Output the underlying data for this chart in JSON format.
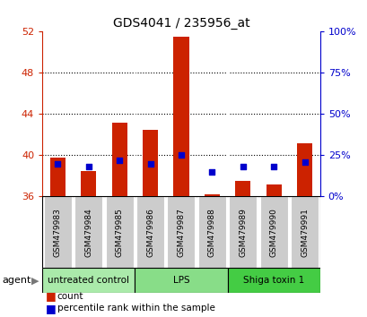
{
  "title": "GDS4041 / 235956_at",
  "samples": [
    "GSM479983",
    "GSM479984",
    "GSM479985",
    "GSM479986",
    "GSM479987",
    "GSM479988",
    "GSM479989",
    "GSM479990",
    "GSM479991"
  ],
  "counts": [
    39.8,
    38.5,
    43.2,
    42.5,
    51.5,
    36.2,
    37.5,
    37.2,
    41.2
  ],
  "percentiles": [
    20,
    18,
    22,
    20,
    25,
    15,
    18,
    18,
    21
  ],
  "baseline": 36,
  "ylim_left": [
    36,
    52
  ],
  "ylim_right": [
    0,
    100
  ],
  "yticks_left": [
    36,
    40,
    44,
    48,
    52
  ],
  "yticks_right": [
    0,
    25,
    50,
    75,
    100
  ],
  "groups": [
    {
      "label": "untreated control",
      "start": 0,
      "end": 3,
      "color": "#aaeaaa"
    },
    {
      "label": "LPS",
      "start": 3,
      "end": 6,
      "color": "#88dd88"
    },
    {
      "label": "Shiga toxin 1",
      "start": 6,
      "end": 9,
      "color": "#44cc44"
    }
  ],
  "bar_color": "#cc2200",
  "percentile_color": "#0000cc",
  "bar_width": 0.5,
  "background_color": "#ffffff",
  "plot_bg_color": "#ffffff",
  "sample_bg_color": "#cccccc",
  "grid_color": "#000000",
  "title_color": "#000000",
  "left_axis_color": "#cc2200",
  "right_axis_color": "#0000cc",
  "agent_label": "agent"
}
